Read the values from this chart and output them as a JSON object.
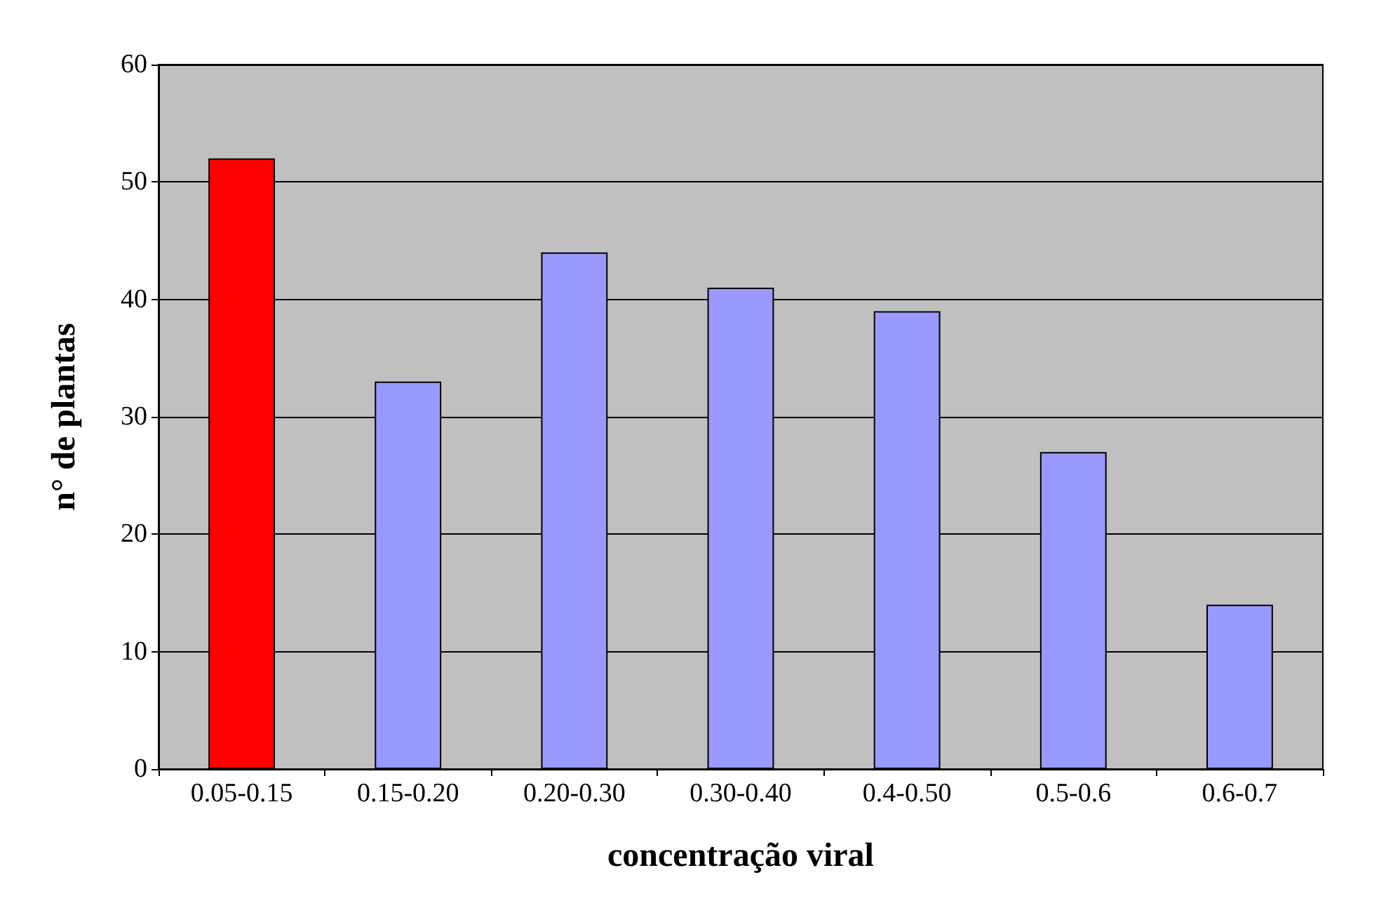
{
  "chart_data": {
    "type": "bar",
    "xlabel": "concentração viral",
    "ylabel": "n° de plantas",
    "categories": [
      "0.05-0.15",
      "0.15-0.20",
      "0.20-0.30",
      "0.30-0.40",
      "0.4-0.50",
      "0.5-0.6",
      "0.6-0.7"
    ],
    "values": [
      52,
      33,
      44,
      41,
      39,
      27,
      14
    ],
    "colors": [
      "#ff0000",
      "#9999ff",
      "#9999ff",
      "#9999ff",
      "#9999ff",
      "#9999ff",
      "#9999ff"
    ],
    "ylim": [
      0,
      60
    ],
    "yticks": [
      0,
      10,
      20,
      30,
      40,
      50,
      60
    ],
    "grid": "y"
  }
}
